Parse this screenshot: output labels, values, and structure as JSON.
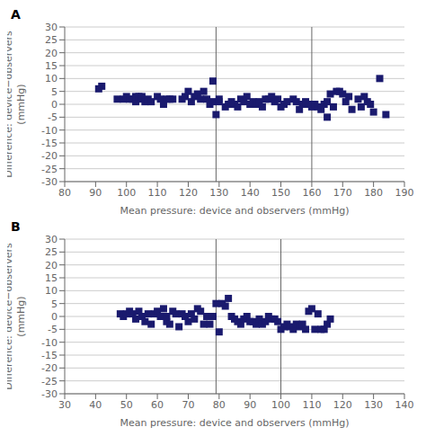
{
  "chart_data": [
    {
      "type": "scatter",
      "title": "A",
      "x": [
        91,
        92,
        97,
        99,
        100,
        101,
        102,
        103,
        103,
        104,
        105,
        105,
        106,
        107,
        108,
        110,
        111,
        112,
        113,
        114,
        115,
        118,
        119,
        120,
        121,
        122,
        123,
        124,
        125,
        126,
        127,
        128,
        128,
        129,
        130,
        130,
        132,
        133,
        134,
        135,
        136,
        137,
        138,
        139,
        140,
        141,
        142,
        143,
        144,
        145,
        146,
        147,
        148,
        149,
        150,
        151,
        152,
        154,
        155,
        156,
        157,
        158,
        159,
        160,
        161,
        162,
        163,
        164,
        165,
        165,
        166,
        167,
        168,
        169,
        170,
        171,
        172,
        173,
        175,
        176,
        177,
        178,
        179,
        180,
        182,
        184
      ],
      "values": [
        6,
        7,
        2,
        2,
        3,
        2,
        2,
        1,
        3,
        3,
        2,
        3,
        1,
        2,
        1,
        3,
        2,
        0,
        2,
        2,
        2,
        2,
        3,
        5,
        1,
        3,
        4,
        2,
        5,
        2,
        0,
        1,
        9,
        -4,
        1,
        2,
        -1,
        0,
        1,
        0,
        -1,
        2,
        1,
        3,
        0,
        1,
        0,
        1,
        -1,
        2,
        2,
        3,
        1,
        2,
        -1,
        0,
        1,
        2,
        1,
        -2,
        0,
        1,
        0,
        -1,
        0,
        -1,
        -2,
        0,
        1,
        -5,
        4,
        -1,
        5,
        5,
        4,
        1,
        3,
        -2,
        2,
        -1,
        3,
        1,
        0,
        -3,
        10,
        -4
      ],
      "vlines": [
        129,
        160
      ],
      "xlim": [
        80,
        190
      ],
      "ylim": [
        -30,
        30
      ],
      "xticks": [
        80,
        90,
        100,
        110,
        120,
        130,
        140,
        150,
        160,
        170,
        180,
        190
      ],
      "yticks": [
        -30,
        -25,
        -20,
        -15,
        -10,
        -5,
        0,
        5,
        10,
        15,
        20,
        25,
        30
      ],
      "xlabel": "Mean pressure: device and observers (mmHg)",
      "ylabel": "Difference: device−observers\n(mmHg)",
      "color": "#1a1a6e",
      "marker": "square",
      "grid": true
    },
    {
      "type": "scatter",
      "title": "B",
      "x": [
        48,
        49,
        50,
        51,
        52,
        53,
        54,
        55,
        56,
        57,
        58,
        59,
        60,
        61,
        62,
        63,
        63,
        64,
        65,
        66,
        67,
        68,
        69,
        70,
        71,
        72,
        73,
        74,
        75,
        76,
        77,
        78,
        79,
        80,
        81,
        82,
        83,
        84,
        85,
        86,
        87,
        88,
        89,
        90,
        91,
        92,
        93,
        94,
        95,
        96,
        97,
        98,
        99,
        100,
        101,
        102,
        103,
        104,
        105,
        106,
        107,
        108,
        109,
        110,
        111,
        112,
        113,
        114,
        115,
        116
      ],
      "values": [
        1,
        0,
        1,
        2,
        1,
        -1,
        2,
        0,
        -2,
        1,
        -3,
        1,
        2,
        0,
        3,
        -2,
        0,
        -3,
        2,
        1,
        -4,
        1,
        0,
        -2,
        1,
        -1,
        3,
        2,
        -3,
        0,
        -3,
        0,
        5,
        -6,
        5,
        4,
        7,
        0,
        -1,
        -2,
        -3,
        -1,
        0,
        -2,
        -2,
        -3,
        -1,
        -3,
        -2,
        0,
        -1,
        -1,
        -2,
        -5,
        -4,
        -3,
        -4,
        -5,
        -3,
        -4,
        -3,
        -5,
        2,
        3,
        -5,
        1,
        -5,
        -5,
        -3,
        -1
      ],
      "vlines": [
        79,
        100
      ],
      "xlim": [
        30,
        140
      ],
      "ylim": [
        -30,
        30
      ],
      "xticks": [
        30,
        40,
        50,
        60,
        70,
        80,
        90,
        100,
        110,
        120,
        130,
        140
      ],
      "yticks": [
        -30,
        -25,
        -20,
        -15,
        -10,
        -5,
        0,
        5,
        10,
        15,
        20,
        25,
        30
      ],
      "xlabel": "Mean pressure: device and observers (mmHg)",
      "ylabel": "Difference: device−observers\n(mmHg)",
      "color": "#1a1a6e",
      "marker": "square",
      "grid": true
    }
  ]
}
